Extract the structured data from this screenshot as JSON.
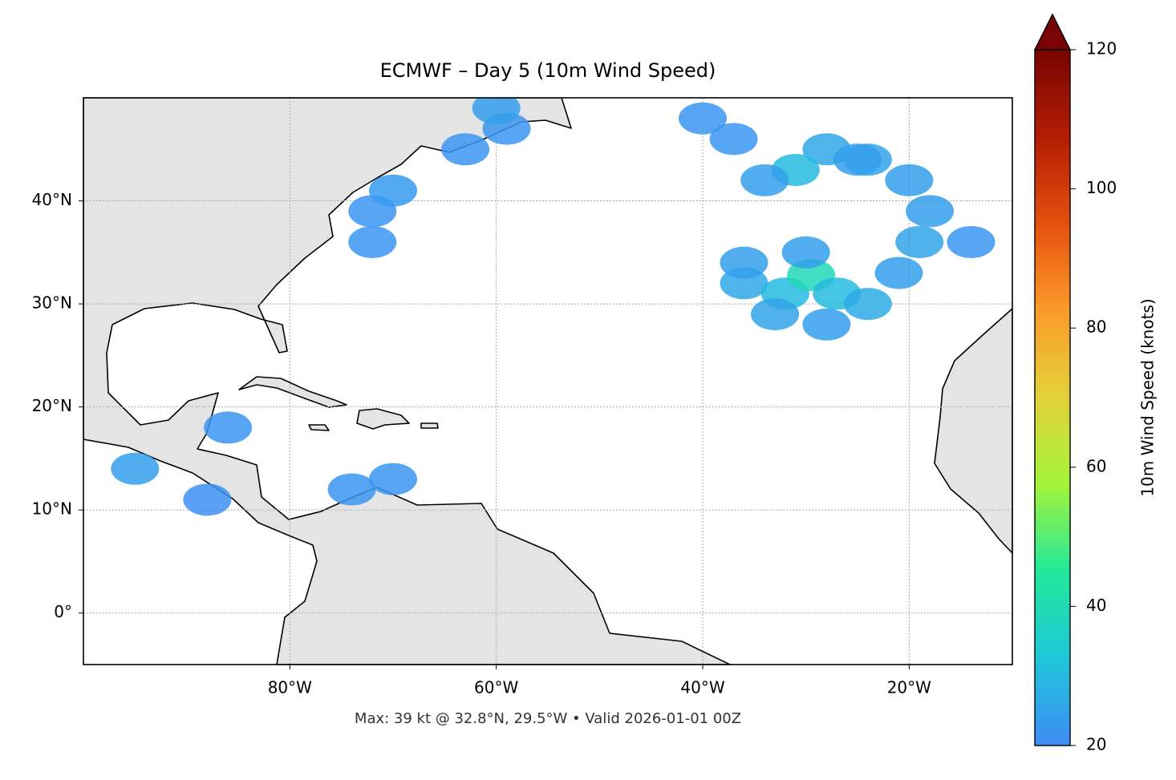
{
  "chart_data": {
    "type": "map",
    "title": "ECMWF – Day 5 (10m Wind Speed)",
    "footer": "Max: 39 kt @ 32.8°N, 29.5°W • Valid 2026-01-01 00Z",
    "xlim": [
      -100,
      -10
    ],
    "ylim": [
      -5,
      50
    ],
    "xticks": [
      {
        "value": -80,
        "label": "80°W"
      },
      {
        "value": -60,
        "label": "60°W"
      },
      {
        "value": -40,
        "label": "40°W"
      },
      {
        "value": -20,
        "label": "20°W"
      }
    ],
    "yticks": [
      {
        "value": 0,
        "label": "0°"
      },
      {
        "value": 10,
        "label": "10°N"
      },
      {
        "value": 20,
        "label": "20°N"
      },
      {
        "value": 30,
        "label": "30°N"
      },
      {
        "value": 40,
        "label": "40°N"
      }
    ],
    "grid": true,
    "colorbar": {
      "label": "10m Wind Speed (knots)",
      "lim": [
        20,
        120
      ],
      "ticks": [
        20,
        40,
        60,
        80,
        100,
        120
      ],
      "extend": "max",
      "colormap": [
        "#3e8cf5",
        "#1fc6d9",
        "#22e89a",
        "#a4f43a",
        "#e3d13a",
        "#fb9b2a",
        "#e4500e",
        "#b21d04",
        "#7a0403"
      ]
    },
    "x": [
      -36,
      -32,
      -29.5,
      -27,
      -24,
      -33,
      -28,
      -36,
      -30,
      -21,
      -19,
      -18,
      -20,
      -24,
      -28,
      -31,
      -34,
      -37,
      -40,
      -25,
      -14,
      -72,
      -70,
      -72,
      -63,
      -59,
      -60,
      -95,
      -74,
      -70,
      -86,
      -88
    ],
    "y": [
      32,
      31,
      32.8,
      31,
      30,
      29,
      28,
      34,
      35,
      33,
      36,
      39,
      42,
      44,
      45,
      43,
      42,
      46,
      48,
      44,
      36,
      39,
      41,
      36,
      45,
      47,
      49,
      14,
      12,
      13,
      18,
      11
    ],
    "values": [
      26,
      30,
      39,
      30,
      27,
      25,
      24,
      24,
      24,
      24,
      25,
      24,
      24,
      25,
      26,
      30,
      24,
      22,
      22,
      24,
      22,
      22,
      23,
      22,
      22,
      22,
      24,
      24,
      22,
      22,
      22,
      21
    ]
  }
}
